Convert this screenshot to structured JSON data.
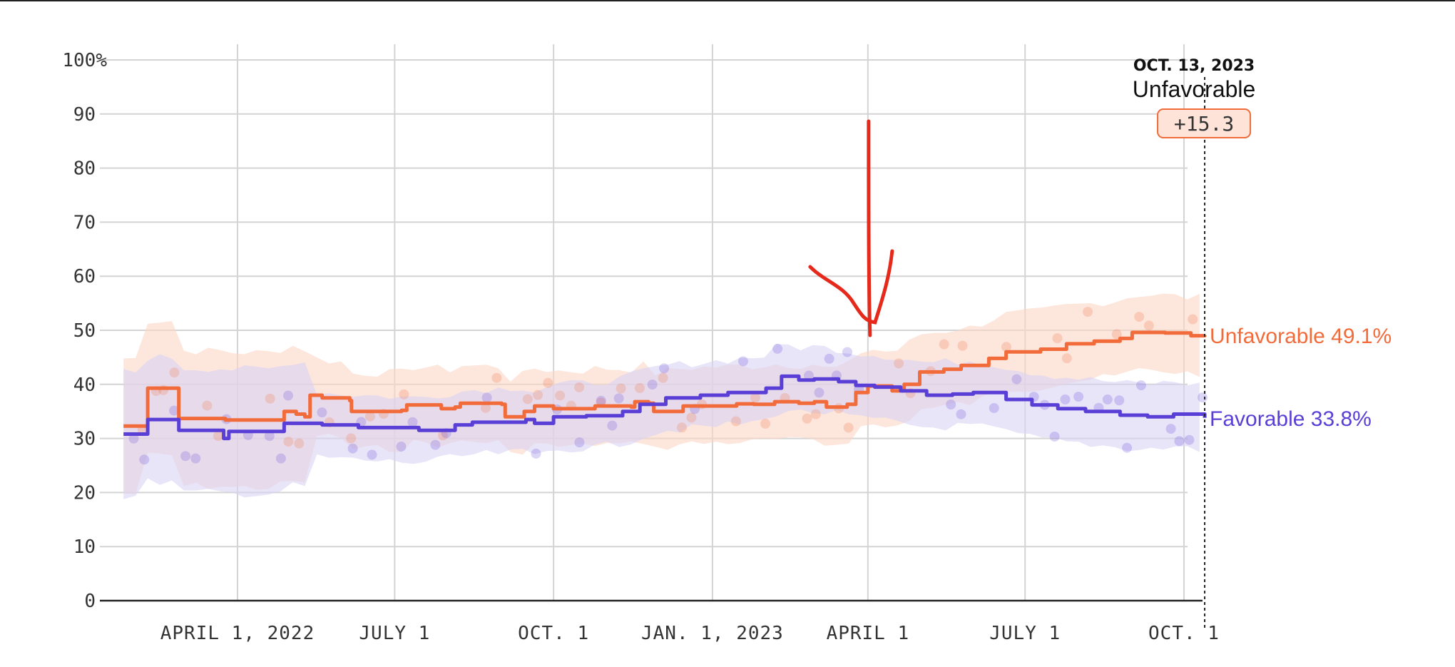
{
  "chart_data": {
    "type": "line",
    "title": "",
    "xlabel": "",
    "ylabel": "",
    "ylim": [
      0,
      100
    ],
    "y_ticks": [
      "100%",
      "90",
      "80",
      "70",
      "60",
      "50",
      "40",
      "30",
      "20",
      "10",
      "0"
    ],
    "x_ticks": [
      {
        "date": "2022-04-01",
        "label": "APRIL 1, 2022"
      },
      {
        "date": "2022-07-01",
        "label": "JULY 1"
      },
      {
        "date": "2022-10-01",
        "label": "OCT. 1"
      },
      {
        "date": "2023-01-01",
        "label": "JAN. 1, 2023"
      },
      {
        "date": "2023-04-01",
        "label": "APRIL 1"
      },
      {
        "date": "2023-07-01",
        "label": "JULY 1"
      },
      {
        "date": "2023-10-01",
        "label": "OCT. 1"
      }
    ],
    "grid": true,
    "series": [
      {
        "name": "Unfavorable",
        "color": "#f26b3a",
        "band_color": "#fbd5c4",
        "end_value": 49.1,
        "points": [
          [
            "2022-01-25",
            32.3
          ],
          [
            "2022-02-07",
            32.3
          ],
          [
            "2022-02-08",
            39.3
          ],
          [
            "2022-02-23",
            39.3
          ],
          [
            "2022-02-26",
            33.7
          ],
          [
            "2022-03-22",
            33.7
          ],
          [
            "2022-03-25",
            33.4
          ],
          [
            "2022-04-25",
            33.4
          ],
          [
            "2022-04-28",
            35.0
          ],
          [
            "2022-05-05",
            34.5
          ],
          [
            "2022-05-10",
            34.0
          ],
          [
            "2022-05-13",
            38.0
          ],
          [
            "2022-05-20",
            37.5
          ],
          [
            "2022-06-05",
            37.0
          ],
          [
            "2022-06-06",
            35.0
          ],
          [
            "2022-07-05",
            35.2
          ],
          [
            "2022-07-08",
            36.2
          ],
          [
            "2022-07-25",
            36.2
          ],
          [
            "2022-07-28",
            35.5
          ],
          [
            "2022-08-05",
            35.8
          ],
          [
            "2022-08-08",
            36.5
          ],
          [
            "2022-09-01",
            36.3
          ],
          [
            "2022-09-03",
            34.0
          ],
          [
            "2022-09-10",
            34.0
          ],
          [
            "2022-09-14",
            35.0
          ],
          [
            "2022-09-20",
            36.0
          ],
          [
            "2022-10-01",
            35.5
          ],
          [
            "2022-10-20",
            35.5
          ],
          [
            "2022-10-25",
            36.0
          ],
          [
            "2022-11-15",
            35.8
          ],
          [
            "2022-11-17",
            36.8
          ],
          [
            "2022-11-25",
            36.5
          ],
          [
            "2022-11-28",
            35.0
          ],
          [
            "2022-12-15",
            36.0
          ],
          [
            "2023-01-15",
            36.4
          ],
          [
            "2023-01-25",
            36.3
          ],
          [
            "2023-02-06",
            36.8
          ],
          [
            "2023-02-20",
            36.5
          ],
          [
            "2023-03-01",
            36.8
          ],
          [
            "2023-03-08",
            35.8
          ],
          [
            "2023-03-20",
            36.3
          ],
          [
            "2023-03-25",
            38.5
          ],
          [
            "2023-04-01",
            39.7
          ],
          [
            "2023-04-15",
            38.8
          ],
          [
            "2023-04-22",
            40.0
          ],
          [
            "2023-05-01",
            42.3
          ],
          [
            "2023-05-15",
            42.8
          ],
          [
            "2023-05-25",
            43.5
          ],
          [
            "2023-06-01",
            43.5
          ],
          [
            "2023-06-10",
            44.8
          ],
          [
            "2023-06-20",
            46.0
          ],
          [
            "2023-07-10",
            46.5
          ],
          [
            "2023-07-25",
            47.5
          ],
          [
            "2023-08-10",
            48.0
          ],
          [
            "2023-08-25",
            48.5
          ],
          [
            "2023-09-01",
            49.6
          ],
          [
            "2023-09-20",
            49.5
          ],
          [
            "2023-10-05",
            49.0
          ],
          [
            "2023-10-13",
            49.1
          ]
        ]
      },
      {
        "name": "Favorable",
        "color": "#5a3fd6",
        "band_color": "#d9d3f5",
        "end_value": 33.8,
        "points": [
          [
            "2022-01-25",
            30.8
          ],
          [
            "2022-02-07",
            30.8
          ],
          [
            "2022-02-08",
            33.5
          ],
          [
            "2022-02-23",
            33.5
          ],
          [
            "2022-02-26",
            31.5
          ],
          [
            "2022-03-22",
            31.5
          ],
          [
            "2022-03-24",
            30.0
          ],
          [
            "2022-03-27",
            31.3
          ],
          [
            "2022-04-25",
            31.3
          ],
          [
            "2022-04-28",
            32.8
          ],
          [
            "2022-05-20",
            32.5
          ],
          [
            "2022-06-10",
            32.0
          ],
          [
            "2022-07-15",
            31.5
          ],
          [
            "2022-08-05",
            32.5
          ],
          [
            "2022-08-15",
            33.0
          ],
          [
            "2022-09-15",
            33.5
          ],
          [
            "2022-09-20",
            32.8
          ],
          [
            "2022-10-01",
            34.0
          ],
          [
            "2022-10-20",
            34.2
          ],
          [
            "2022-11-10",
            35.0
          ],
          [
            "2022-11-20",
            36.3
          ],
          [
            "2022-12-05",
            37.5
          ],
          [
            "2022-12-25",
            38.0
          ],
          [
            "2023-01-10",
            38.5
          ],
          [
            "2023-02-01",
            39.3
          ],
          [
            "2023-02-10",
            41.5
          ],
          [
            "2023-02-20",
            40.8
          ],
          [
            "2023-03-01",
            41.0
          ],
          [
            "2023-03-15",
            40.5
          ],
          [
            "2023-03-25",
            39.8
          ],
          [
            "2023-04-05",
            39.5
          ],
          [
            "2023-04-20",
            38.8
          ],
          [
            "2023-05-05",
            38.0
          ],
          [
            "2023-05-20",
            38.2
          ],
          [
            "2023-06-01",
            38.5
          ],
          [
            "2023-06-20",
            37.2
          ],
          [
            "2023-07-05",
            36.2
          ],
          [
            "2023-07-20",
            35.5
          ],
          [
            "2023-08-05",
            35.0
          ],
          [
            "2023-08-25",
            34.3
          ],
          [
            "2023-09-10",
            34.0
          ],
          [
            "2023-09-25",
            34.5
          ],
          [
            "2023-10-13",
            33.8
          ]
        ]
      }
    ],
    "tooltip": {
      "date": "OCT. 13, 2023",
      "title": "Unfavorable",
      "value": "+15.3",
      "at": "2023-10-13"
    },
    "end_labels": [
      {
        "text": "Unfavorable 49.1%",
        "value": 49.1,
        "color": "#f26b3a"
      },
      {
        "text": "Favorable 33.8%",
        "value": 33.8,
        "color": "#5a3fd6"
      }
    ],
    "annotation": {
      "type": "hand-drawn-arrow",
      "color": "#e52a1c",
      "points_to": "2023-04-01",
      "value": 49
    }
  }
}
